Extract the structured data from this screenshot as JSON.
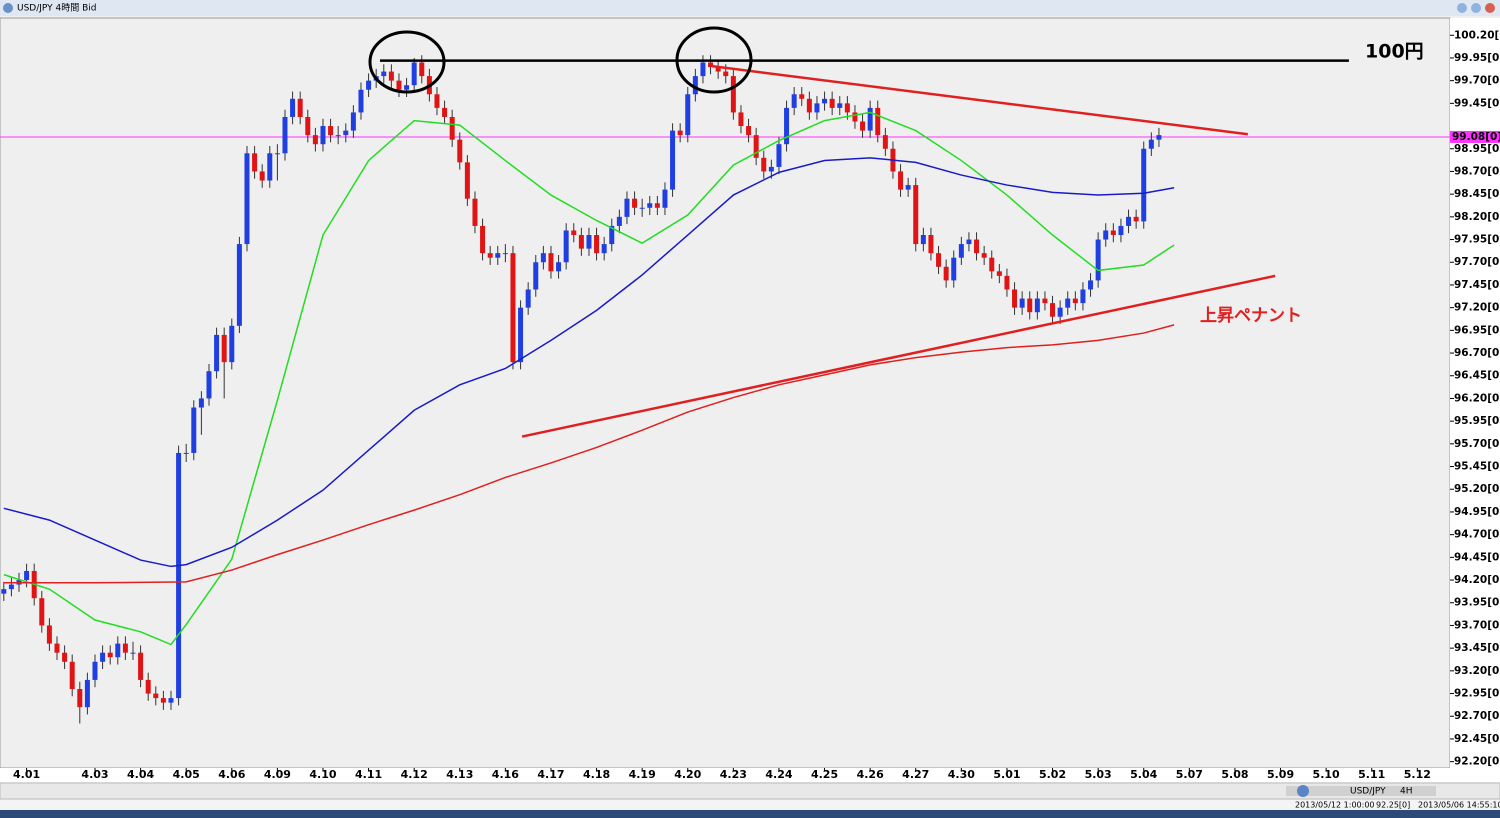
{
  "window_title": "USD/JPY 4時間 Bid",
  "toolbar": [
    "USD/JPY",
    "4H"
  ],
  "status": [
    "2013/05/12 1:00:00",
    "92.25[0]",
    "2013/05/06 14:55:10"
  ],
  "chart_data": {
    "type": "candlestick",
    "up_color": "#1f3fe0",
    "down_color": "#e01414",
    "xlim": [
      -0.5,
      190.3
    ],
    "ylim": [
      92.13,
      100.39
    ],
    "xticks": [
      {
        "value": 3,
        "label": "4.01"
      },
      {
        "value": 12,
        "label": "4.03"
      },
      {
        "value": 18,
        "label": "4.04"
      },
      {
        "value": 24,
        "label": "4.05"
      },
      {
        "value": 30,
        "label": "4.06"
      },
      {
        "value": 36,
        "label": "4.09"
      },
      {
        "value": 42,
        "label": "4.10"
      },
      {
        "value": 48,
        "label": "4.11"
      },
      {
        "value": 54,
        "label": "4.12"
      },
      {
        "value": 60,
        "label": "4.13"
      },
      {
        "value": 66,
        "label": "4.16"
      },
      {
        "value": 72,
        "label": "4.17"
      },
      {
        "value": 78,
        "label": "4.18"
      },
      {
        "value": 84,
        "label": "4.19"
      },
      {
        "value": 90,
        "label": "4.20"
      },
      {
        "value": 96,
        "label": "4.23"
      },
      {
        "value": 102,
        "label": "4.24"
      },
      {
        "value": 108,
        "label": "4.25"
      },
      {
        "value": 114,
        "label": "4.26"
      },
      {
        "value": 120,
        "label": "4.27"
      },
      {
        "value": 126,
        "label": "4.30"
      },
      {
        "value": 132,
        "label": "5.01"
      },
      {
        "value": 138,
        "label": "5.02"
      },
      {
        "value": 144,
        "label": "5.03"
      },
      {
        "value": 150,
        "label": "5.04"
      },
      {
        "value": 156,
        "label": "5.07"
      },
      {
        "value": 162,
        "label": "5.08"
      },
      {
        "value": 168,
        "label": "5.09"
      },
      {
        "value": 174,
        "label": "5.10"
      },
      {
        "value": 180,
        "label": "5.11"
      },
      {
        "value": 186,
        "label": "5.12"
      }
    ],
    "yticks": [
      {
        "value": 100.2,
        "label": "100.20[0]"
      },
      {
        "value": 99.95,
        "label": "99.95[0]"
      },
      {
        "value": 99.7,
        "label": "99.70[0]"
      },
      {
        "value": 99.45,
        "label": "99.45[0]"
      },
      {
        "value": 98.95,
        "label": "98.95[0]"
      },
      {
        "value": 98.7,
        "label": "98.70[0]"
      },
      {
        "value": 98.45,
        "label": "98.45[0]"
      },
      {
        "value": 98.2,
        "label": "98.20[0]"
      },
      {
        "value": 97.95,
        "label": "97.95[0]"
      },
      {
        "value": 97.7,
        "label": "97.70[0]"
      },
      {
        "value": 97.45,
        "label": "97.45[0]"
      },
      {
        "value": 97.2,
        "label": "97.20[0]"
      },
      {
        "value": 96.95,
        "label": "96.95[0]"
      },
      {
        "value": 96.7,
        "label": "96.70[0]"
      },
      {
        "value": 96.45,
        "label": "96.45[0]"
      },
      {
        "value": 96.2,
        "label": "96.20[0]"
      },
      {
        "value": 95.95,
        "label": "95.95[0]"
      },
      {
        "value": 95.7,
        "label": "95.70[0]"
      },
      {
        "value": 95.45,
        "label": "95.45[0]"
      },
      {
        "value": 95.2,
        "label": "95.20[0]"
      },
      {
        "value": 94.95,
        "label": "94.95[0]"
      },
      {
        "value": 94.7,
        "label": "94.70[0]"
      },
      {
        "value": 94.45,
        "label": "94.45[0]"
      },
      {
        "value": 94.2,
        "label": "94.20[0]"
      },
      {
        "value": 93.95,
        "label": "93.95[0]"
      },
      {
        "value": 93.7,
        "label": "93.70[0]"
      },
      {
        "value": 93.45,
        "label": "93.45[0]"
      },
      {
        "value": 93.2,
        "label": "93.20[0]"
      },
      {
        "value": 92.95,
        "label": "92.95[0]"
      },
      {
        "value": 92.7,
        "label": "92.70[0]"
      },
      {
        "value": 92.45,
        "label": "92.45[0]"
      },
      {
        "value": 92.2,
        "label": "92.20[0]"
      }
    ],
    "candles": [
      [
        94.05,
        94.18,
        93.97,
        94.1
      ],
      [
        94.1,
        94.23,
        94.02,
        94.15
      ],
      [
        94.15,
        94.28,
        94.07,
        94.2
      ],
      [
        94.2,
        94.38,
        94.12,
        94.3
      ],
      [
        94.3,
        94.38,
        93.92,
        94.0
      ],
      [
        94.0,
        94.08,
        93.62,
        93.7
      ],
      [
        93.7,
        93.78,
        93.42,
        93.5
      ],
      [
        93.5,
        93.58,
        93.32,
        93.4
      ],
      [
        93.4,
        93.48,
        93.22,
        93.3
      ],
      [
        93.3,
        93.38,
        92.92,
        93.0
      ],
      [
        93.0,
        93.08,
        92.62,
        92.8
      ],
      [
        92.8,
        93.18,
        92.72,
        93.1
      ],
      [
        93.1,
        93.38,
        93.02,
        93.3
      ],
      [
        93.3,
        93.48,
        93.22,
        93.4
      ],
      [
        93.4,
        93.48,
        93.27,
        93.35
      ],
      [
        93.35,
        93.58,
        93.27,
        93.5
      ],
      [
        93.5,
        93.58,
        93.32,
        93.4
      ],
      [
        93.4,
        93.52,
        93.32,
        93.4
      ],
      [
        93.4,
        93.48,
        93.02,
        93.1
      ],
      [
        93.1,
        93.18,
        92.87,
        92.95
      ],
      [
        92.95,
        93.03,
        92.82,
        92.9
      ],
      [
        92.9,
        92.98,
        92.77,
        92.85
      ],
      [
        92.85,
        92.98,
        92.77,
        92.9
      ],
      [
        92.9,
        95.68,
        92.82,
        95.6
      ],
      [
        95.6,
        95.7,
        95.5,
        95.6
      ],
      [
        95.6,
        96.18,
        95.52,
        96.1
      ],
      [
        96.1,
        96.28,
        95.8,
        96.2
      ],
      [
        96.2,
        96.58,
        96.12,
        96.5
      ],
      [
        96.5,
        96.98,
        96.42,
        96.9
      ],
      [
        96.9,
        96.98,
        96.2,
        96.6
      ],
      [
        96.6,
        97.08,
        96.52,
        97.0
      ],
      [
        97.0,
        97.98,
        96.92,
        97.9
      ],
      [
        97.9,
        98.98,
        97.82,
        98.9
      ],
      [
        98.9,
        98.98,
        98.62,
        98.7
      ],
      [
        98.7,
        98.78,
        98.52,
        98.6
      ],
      [
        98.6,
        98.98,
        98.52,
        98.9
      ],
      [
        98.9,
        99.0,
        98.6,
        98.9
      ],
      [
        98.9,
        99.38,
        98.82,
        99.3
      ],
      [
        99.3,
        99.58,
        99.22,
        99.5
      ],
      [
        99.5,
        99.58,
        99.22,
        99.3
      ],
      [
        99.3,
        99.38,
        99.02,
        99.1
      ],
      [
        99.1,
        99.18,
        98.92,
        99.0
      ],
      [
        99.0,
        99.28,
        98.92,
        99.2
      ],
      [
        99.2,
        99.28,
        99.02,
        99.1
      ],
      [
        99.1,
        99.2,
        99.0,
        99.1
      ],
      [
        99.1,
        99.23,
        99.02,
        99.15
      ],
      [
        99.15,
        99.43,
        99.07,
        99.35
      ],
      [
        99.35,
        99.68,
        99.27,
        99.6
      ],
      [
        99.6,
        99.78,
        99.52,
        99.7
      ],
      [
        99.7,
        99.83,
        99.62,
        99.75
      ],
      [
        99.75,
        99.88,
        99.67,
        99.8
      ],
      [
        99.8,
        99.88,
        99.62,
        99.7
      ],
      [
        99.7,
        99.78,
        99.52,
        99.6
      ],
      [
        99.6,
        99.73,
        99.52,
        99.65
      ],
      [
        99.65,
        99.95,
        99.57,
        99.9
      ],
      [
        99.9,
        99.98,
        99.67,
        99.75
      ],
      [
        99.75,
        99.83,
        99.47,
        99.55
      ],
      [
        99.55,
        99.63,
        99.32,
        99.4
      ],
      [
        99.4,
        99.48,
        99.22,
        99.3
      ],
      [
        99.3,
        99.38,
        98.97,
        99.05
      ],
      [
        99.05,
        99.13,
        98.72,
        98.8
      ],
      [
        98.8,
        98.88,
        98.32,
        98.4
      ],
      [
        98.4,
        98.48,
        98.02,
        98.1
      ],
      [
        98.1,
        98.18,
        97.72,
        97.8
      ],
      [
        97.8,
        97.88,
        97.67,
        97.75
      ],
      [
        97.75,
        97.88,
        97.67,
        97.8
      ],
      [
        97.8,
        97.9,
        97.7,
        97.8
      ],
      [
        97.8,
        97.88,
        96.52,
        96.6
      ],
      [
        96.6,
        97.28,
        96.52,
        97.2
      ],
      [
        97.2,
        97.48,
        97.12,
        97.4
      ],
      [
        97.4,
        97.78,
        97.32,
        97.7
      ],
      [
        97.7,
        97.88,
        97.62,
        97.8
      ],
      [
        97.8,
        97.88,
        97.52,
        97.6
      ],
      [
        97.6,
        97.78,
        97.52,
        97.7
      ],
      [
        97.7,
        98.13,
        97.62,
        98.05
      ],
      [
        98.05,
        98.13,
        97.92,
        98.0
      ],
      [
        98.0,
        98.08,
        97.77,
        97.85
      ],
      [
        97.85,
        98.08,
        97.77,
        98.0
      ],
      [
        98.0,
        98.08,
        97.72,
        97.8
      ],
      [
        97.8,
        97.98,
        97.72,
        97.9
      ],
      [
        97.9,
        98.18,
        97.82,
        98.1
      ],
      [
        98.1,
        98.28,
        98.02,
        98.2
      ],
      [
        98.2,
        98.48,
        98.12,
        98.4
      ],
      [
        98.4,
        98.48,
        98.22,
        98.3
      ],
      [
        98.3,
        98.4,
        98.2,
        98.3
      ],
      [
        98.3,
        98.43,
        98.22,
        98.35
      ],
      [
        98.35,
        98.43,
        98.22,
        98.3
      ],
      [
        98.3,
        98.58,
        98.22,
        98.5
      ],
      [
        98.5,
        99.23,
        98.42,
        99.15
      ],
      [
        99.15,
        99.23,
        99.02,
        99.1
      ],
      [
        99.1,
        99.63,
        99.02,
        99.55
      ],
      [
        99.55,
        99.83,
        99.47,
        99.75
      ],
      [
        99.75,
        99.98,
        99.67,
        99.9
      ],
      [
        99.9,
        99.98,
        99.77,
        99.85
      ],
      [
        99.85,
        99.93,
        99.72,
        99.8
      ],
      [
        99.8,
        99.88,
        99.67,
        99.75
      ],
      [
        99.75,
        99.83,
        99.27,
        99.35
      ],
      [
        99.35,
        99.43,
        99.12,
        99.2
      ],
      [
        99.2,
        99.28,
        99.02,
        99.1
      ],
      [
        99.1,
        99.18,
        98.77,
        98.85
      ],
      [
        98.85,
        98.93,
        98.62,
        98.7
      ],
      [
        98.7,
        98.83,
        98.62,
        98.75
      ],
      [
        98.75,
        99.08,
        98.67,
        99.0
      ],
      [
        99.0,
        99.48,
        98.92,
        99.4
      ],
      [
        99.4,
        99.63,
        99.32,
        99.55
      ],
      [
        99.55,
        99.63,
        99.42,
        99.5
      ],
      [
        99.5,
        99.58,
        99.27,
        99.35
      ],
      [
        99.35,
        99.53,
        99.27,
        99.45
      ],
      [
        99.45,
        99.58,
        99.37,
        99.5
      ],
      [
        99.5,
        99.58,
        99.32,
        99.4
      ],
      [
        99.4,
        99.53,
        99.32,
        99.45
      ],
      [
        99.45,
        99.53,
        99.27,
        99.35
      ],
      [
        99.35,
        99.43,
        99.17,
        99.25
      ],
      [
        99.25,
        99.33,
        99.07,
        99.15
      ],
      [
        99.15,
        99.48,
        99.07,
        99.4
      ],
      [
        99.4,
        99.48,
        99.02,
        99.1
      ],
      [
        99.1,
        99.18,
        98.87,
        98.95
      ],
      [
        98.95,
        99.03,
        98.62,
        98.7
      ],
      [
        98.7,
        98.78,
        98.42,
        98.5
      ],
      [
        98.5,
        98.63,
        98.42,
        98.55
      ],
      [
        98.55,
        98.63,
        97.82,
        97.9
      ],
      [
        97.9,
        98.08,
        97.82,
        98.0
      ],
      [
        98.0,
        98.08,
        97.72,
        97.8
      ],
      [
        97.8,
        97.88,
        97.57,
        97.65
      ],
      [
        97.65,
        97.73,
        97.42,
        97.5
      ],
      [
        97.5,
        97.83,
        97.42,
        97.75
      ],
      [
        97.75,
        97.98,
        97.67,
        97.9
      ],
      [
        97.9,
        98.03,
        97.82,
        97.95
      ],
      [
        97.95,
        98.03,
        97.72,
        97.8
      ],
      [
        97.8,
        97.88,
        97.67,
        97.75
      ],
      [
        97.75,
        97.83,
        97.52,
        97.6
      ],
      [
        97.6,
        97.68,
        97.47,
        97.55
      ],
      [
        97.55,
        97.63,
        97.32,
        97.4
      ],
      [
        97.4,
        97.48,
        97.12,
        97.2
      ],
      [
        97.2,
        97.38,
        97.12,
        97.3
      ],
      [
        97.3,
        97.38,
        97.07,
        97.15
      ],
      [
        97.15,
        97.38,
        97.07,
        97.3
      ],
      [
        97.3,
        97.38,
        97.17,
        97.25
      ],
      [
        97.25,
        97.33,
        97.02,
        97.1
      ],
      [
        97.1,
        97.28,
        97.02,
        97.2
      ],
      [
        97.2,
        97.38,
        97.12,
        97.3
      ],
      [
        97.3,
        97.38,
        97.17,
        97.25
      ],
      [
        97.25,
        97.48,
        97.17,
        97.4
      ],
      [
        97.4,
        97.58,
        97.32,
        97.5
      ],
      [
        97.5,
        98.03,
        97.42,
        97.95
      ],
      [
        97.95,
        98.13,
        97.87,
        98.05
      ],
      [
        98.05,
        98.13,
        97.92,
        98.0
      ],
      [
        98.0,
        98.18,
        97.92,
        98.1
      ],
      [
        98.1,
        98.28,
        98.02,
        98.2
      ],
      [
        98.2,
        98.28,
        98.07,
        98.15
      ],
      [
        98.15,
        99.03,
        98.07,
        98.95
      ],
      [
        98.95,
        99.13,
        98.87,
        99.05
      ],
      [
        99.05,
        99.18,
        98.97,
        99.1
      ]
    ],
    "series": [
      {
        "color": "#22dd22",
        "x": [
          0,
          6,
          12,
          18,
          22,
          24,
          30,
          36,
          42,
          48,
          54,
          60,
          66,
          72,
          78,
          84,
          90,
          96,
          102,
          108,
          114,
          120,
          126,
          132,
          138,
          144,
          150,
          154
        ],
        "values": [
          94.26,
          94.1,
          93.76,
          93.63,
          93.49,
          93.71,
          94.43,
          96.18,
          98.0,
          98.82,
          99.26,
          99.21,
          98.82,
          98.44,
          98.16,
          97.91,
          98.22,
          98.77,
          99.04,
          99.26,
          99.35,
          99.15,
          98.82,
          98.44,
          98.0,
          97.61,
          97.67,
          97.89
        ]
      },
      {
        "color": "#1a1ac8",
        "x": [
          0,
          6,
          12,
          18,
          22,
          24,
          30,
          36,
          42,
          48,
          54,
          60,
          66,
          72,
          78,
          84,
          90,
          96,
          102,
          108,
          114,
          120,
          126,
          132,
          138,
          144,
          150,
          154
        ],
        "values": [
          94.99,
          94.86,
          94.64,
          94.42,
          94.35,
          94.37,
          94.56,
          94.86,
          95.19,
          95.63,
          96.07,
          96.35,
          96.53,
          96.84,
          97.17,
          97.56,
          98.0,
          98.44,
          98.69,
          98.82,
          98.85,
          98.8,
          98.66,
          98.55,
          98.47,
          98.44,
          98.46,
          98.52
        ]
      },
      {
        "color": "#e02020",
        "x": [
          0,
          12,
          24,
          30,
          36,
          42,
          48,
          54,
          60,
          66,
          72,
          78,
          84,
          90,
          96,
          102,
          108,
          114,
          120,
          126,
          132,
          138,
          144,
          150,
          154
        ],
        "values": [
          94.17,
          94.17,
          94.18,
          94.31,
          94.48,
          94.64,
          94.81,
          94.97,
          95.14,
          95.33,
          95.49,
          95.66,
          95.85,
          96.05,
          96.21,
          96.35,
          96.46,
          96.57,
          96.65,
          96.71,
          96.76,
          96.79,
          96.84,
          96.92,
          97.01
        ]
      }
    ],
    "lines": [
      {
        "color": "#000000",
        "x": [
          49.5,
          177
        ],
        "y": [
          99.92,
          99.92
        ],
        "label": "100円"
      },
      {
        "color": "#e02020",
        "x": [
          93.2,
          163.7
        ],
        "y": [
          99.86,
          99.11
        ]
      },
      {
        "color": "#e02020",
        "x": [
          68.2,
          167.3
        ],
        "y": [
          95.78,
          97.55
        ],
        "label": "上昇ペナント"
      }
    ],
    "price_line": {
      "value": 99.08,
      "label": "99.08[0]",
      "color": "#ff33ff"
    }
  }
}
